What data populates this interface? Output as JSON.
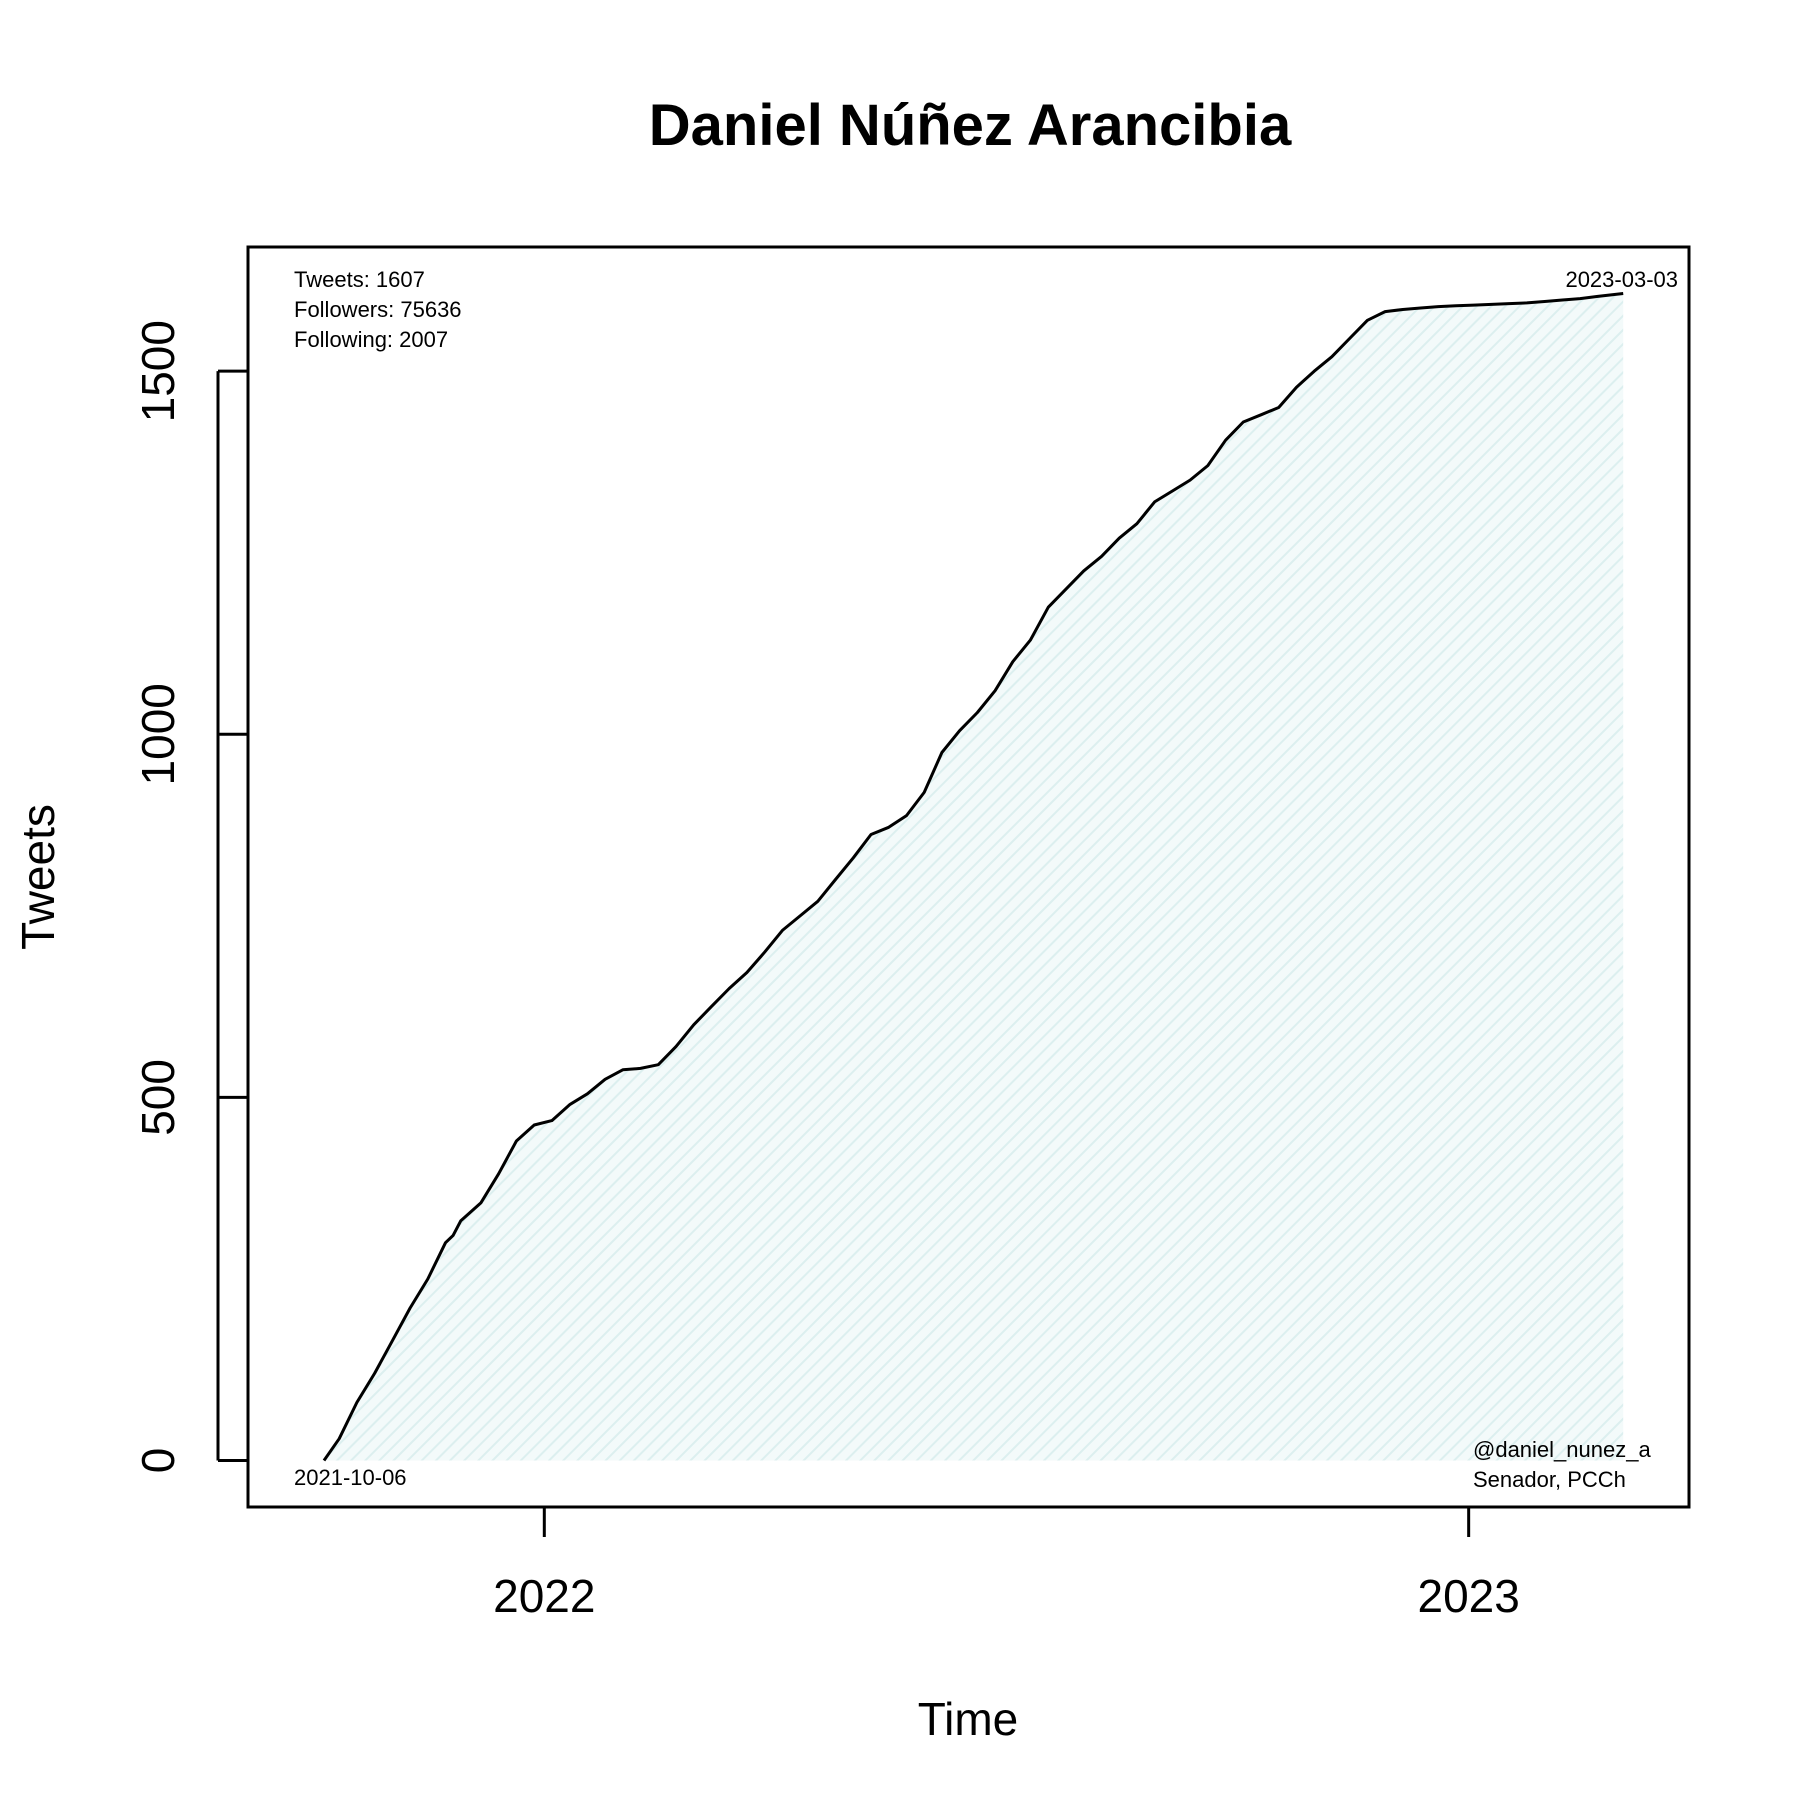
{
  "chart_data": {
    "type": "area",
    "title": "Daniel Núñez Arancibia",
    "xlabel": "Time",
    "ylabel": "Tweets",
    "x_tick_labels": [
      "2022",
      "2023"
    ],
    "x_ticks": [
      "2022-01-01",
      "2023-01-01"
    ],
    "y_tick_labels": [
      "0",
      "500",
      "1000",
      "1500"
    ],
    "y_ticks": [
      0,
      500,
      1000,
      1500
    ],
    "xlim": [
      "2021-09-06",
      "2023-03-29"
    ],
    "ylim": [
      -64,
      1671
    ],
    "line_color": "#000000",
    "fill_color": "#e6f4f4",
    "grid": false,
    "annotations": {
      "stats": [
        "Tweets: 1607",
        "Followers: 75636",
        "Following: 2007"
      ],
      "start_date": "2021-10-06",
      "end_date": "2023-03-03",
      "handle": "@daniel_nunez_a",
      "role": "Senador, PCCh"
    },
    "x": [
      "2021-10-06",
      "2021-10-12",
      "2021-10-19",
      "2021-10-26",
      "2021-11-02",
      "2021-11-09",
      "2021-11-16",
      "2021-11-23",
      "2021-11-26",
      "2021-11-29",
      "2021-12-07",
      "2021-12-14",
      "2021-12-21",
      "2021-12-28",
      "2022-01-04",
      "2022-01-11",
      "2022-01-18",
      "2022-01-25",
      "2022-02-01",
      "2022-02-08",
      "2022-02-15",
      "2022-02-22",
      "2022-03-01",
      "2022-03-08",
      "2022-03-15",
      "2022-03-22",
      "2022-03-29",
      "2022-04-05",
      "2022-04-12",
      "2022-04-19",
      "2022-04-26",
      "2022-05-03",
      "2022-05-10",
      "2022-05-17",
      "2022-05-24",
      "2022-05-31",
      "2022-06-07",
      "2022-06-14",
      "2022-06-21",
      "2022-06-28",
      "2022-07-05",
      "2022-07-12",
      "2022-07-19",
      "2022-07-26",
      "2022-08-02",
      "2022-08-09",
      "2022-08-16",
      "2022-08-23",
      "2022-08-30",
      "2022-09-06",
      "2022-09-13",
      "2022-09-20",
      "2022-09-27",
      "2022-10-04",
      "2022-10-11",
      "2022-10-18",
      "2022-10-25",
      "2022-11-01",
      "2022-11-08",
      "2022-11-15",
      "2022-11-22",
      "2022-11-29",
      "2022-12-06",
      "2022-12-13",
      "2022-12-20",
      "2022-12-27",
      "2023-01-03",
      "2023-01-10",
      "2023-01-17",
      "2023-01-24",
      "2023-01-31",
      "2023-02-07",
      "2023-02-14",
      "2023-02-21",
      "2023-03-03"
    ],
    "y": [
      0,
      30,
      80,
      120,
      165,
      210,
      250,
      300,
      310,
      330,
      355,
      395,
      440,
      462,
      468,
      490,
      505,
      525,
      538,
      540,
      545,
      570,
      600,
      625,
      650,
      672,
      700,
      730,
      750,
      770,
      800,
      830,
      862,
      872,
      888,
      920,
      975,
      1005,
      1030,
      1060,
      1100,
      1130,
      1175,
      1200,
      1225,
      1245,
      1270,
      1290,
      1320,
      1335,
      1350,
      1370,
      1405,
      1430,
      1440,
      1450,
      1478,
      1500,
      1520,
      1545,
      1570,
      1582,
      1585,
      1587,
      1589,
      1590,
      1591,
      1592,
      1593,
      1594,
      1596,
      1598,
      1600,
      1603,
      1607
    ]
  }
}
